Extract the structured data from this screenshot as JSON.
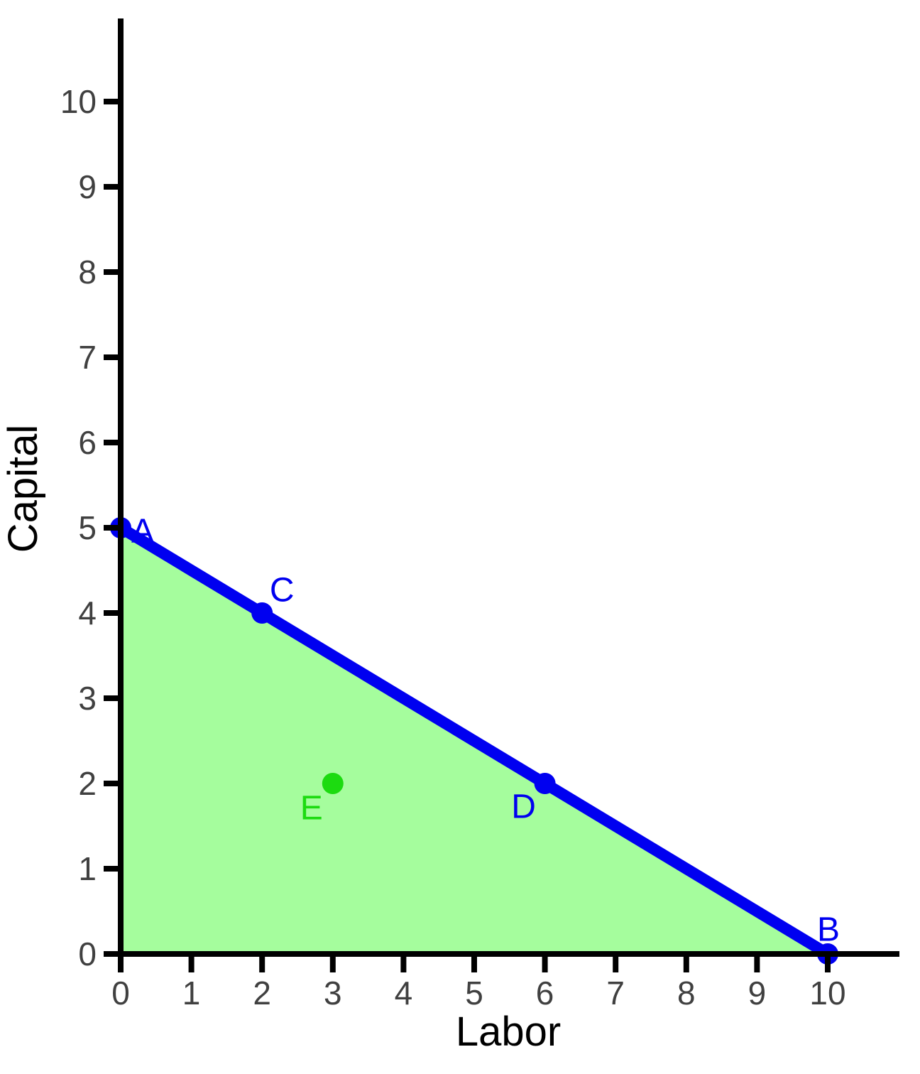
{
  "chart_data": {
    "type": "line",
    "title": "",
    "xlabel": "Labor",
    "ylabel": "Capital",
    "xlim": [
      0,
      11
    ],
    "ylim": [
      0,
      11
    ],
    "x_ticks": [
      0,
      1,
      2,
      3,
      4,
      5,
      6,
      7,
      8,
      9,
      10
    ],
    "y_ticks": [
      0,
      1,
      2,
      3,
      4,
      5,
      6,
      7,
      8,
      9,
      10
    ],
    "grid": false,
    "legend": "none",
    "line": {
      "name": "isocost-line",
      "from": [
        0,
        5
      ],
      "to": [
        10,
        0
      ],
      "slope": -0.5,
      "x_intercept": 10,
      "y_intercept": 5
    },
    "region": {
      "name": "feasible-region",
      "vertices": [
        [
          0,
          5
        ],
        [
          10,
          0
        ],
        [
          0,
          0
        ]
      ]
    },
    "points": [
      {
        "label": "A",
        "x": 0,
        "y": 5,
        "color": "blue",
        "label_offset": [
          31,
          5
        ]
      },
      {
        "label": "B",
        "x": 10,
        "y": 0,
        "color": "blue",
        "label_offset": [
          1,
          -34
        ]
      },
      {
        "label": "C",
        "x": 2,
        "y": 4,
        "color": "blue",
        "label_offset": [
          28,
          -32
        ]
      },
      {
        "label": "D",
        "x": 6,
        "y": 2,
        "color": "blue",
        "label_offset": [
          -30,
          33
        ]
      },
      {
        "label": "E",
        "x": 3,
        "y": 2,
        "color": "green",
        "label_offset": [
          -30,
          35
        ]
      }
    ],
    "colors": {
      "blue": "#0000f0",
      "green": "#1cdb10",
      "region_fill": "#a5fd9d",
      "axis": "#000000",
      "tick_label": "#404040",
      "axis_title": "#000000"
    }
  }
}
